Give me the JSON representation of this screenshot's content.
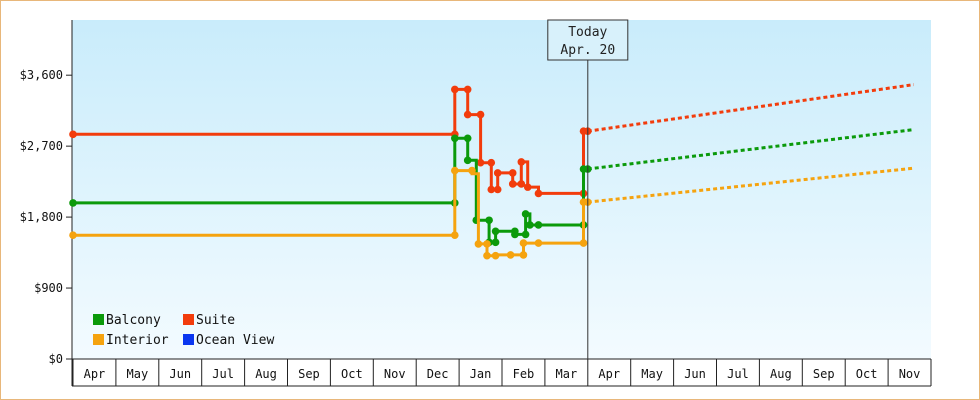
{
  "chart_data": {
    "type": "line",
    "title": "",
    "xlabel": "",
    "ylabel": "",
    "ylim": [
      0,
      4300
    ],
    "yticks": [
      {
        "value": 0,
        "label": "$0"
      },
      {
        "value": 900,
        "label": "$900"
      },
      {
        "value": 1800,
        "label": "$1,800"
      },
      {
        "value": 2700,
        "label": "$2,700"
      },
      {
        "value": 3600,
        "label": "$3,600"
      }
    ],
    "months": [
      "Apr",
      "May",
      "Jun",
      "Jul",
      "Aug",
      "Sep",
      "Oct",
      "Nov",
      "Dec",
      "Jan",
      "Feb",
      "Mar",
      "Apr",
      "May",
      "Jun",
      "Jul",
      "Aug",
      "Sep",
      "Oct",
      "Nov"
    ],
    "x_unit": "months since Apr (first axis month), month index; fractional = day within month",
    "today": {
      "label_line1": "Today",
      "label_line2": "Apr. 20",
      "x": 12.0
    },
    "grid": false,
    "legend_position": "bottom-left",
    "colors": {
      "Balcony": "#0b9a0b",
      "Suite": "#f23c0c",
      "Interior": "#f5a30f",
      "Ocean View": "#0a36f0"
    },
    "series": [
      {
        "name": "Suite",
        "color": "#f23c0c",
        "historical": [
          [
            0.0,
            2850
          ],
          [
            8.9,
            2850
          ],
          [
            8.9,
            3420
          ],
          [
            9.2,
            3420
          ],
          [
            9.2,
            3100
          ],
          [
            9.5,
            3100
          ],
          [
            9.5,
            2490
          ],
          [
            9.75,
            2490
          ],
          [
            9.75,
            2150
          ],
          [
            9.9,
            2150
          ],
          [
            9.9,
            2360
          ],
          [
            10.25,
            2360
          ],
          [
            10.25,
            2220
          ],
          [
            10.45,
            2220
          ],
          [
            10.45,
            2500
          ],
          [
            10.6,
            2500
          ],
          [
            10.6,
            2180
          ],
          [
            10.85,
            2180
          ],
          [
            10.85,
            2100
          ],
          [
            11.9,
            2100
          ],
          [
            11.9,
            2890
          ],
          [
            12.0,
            2890
          ]
        ],
        "projection": [
          [
            12.0,
            2890
          ],
          [
            19.6,
            3480
          ]
        ]
      },
      {
        "name": "Balcony",
        "color": "#0b9a0b",
        "historical": [
          [
            0.0,
            1980
          ],
          [
            8.9,
            1980
          ],
          [
            8.9,
            2800
          ],
          [
            9.2,
            2800
          ],
          [
            9.2,
            2520
          ],
          [
            9.4,
            2520
          ],
          [
            9.4,
            1760
          ],
          [
            9.7,
            1760
          ],
          [
            9.7,
            1480
          ],
          [
            9.85,
            1480
          ],
          [
            9.85,
            1620
          ],
          [
            10.3,
            1620
          ],
          [
            10.3,
            1580
          ],
          [
            10.55,
            1580
          ],
          [
            10.55,
            1840
          ],
          [
            10.65,
            1840
          ],
          [
            10.65,
            1700
          ],
          [
            11.9,
            1700
          ],
          [
            11.9,
            2410
          ],
          [
            12.0,
            2410
          ]
        ],
        "projection": [
          [
            12.0,
            2410
          ],
          [
            19.6,
            2910
          ]
        ]
      },
      {
        "name": "Interior",
        "color": "#f5a30f",
        "historical": [
          [
            0.0,
            1570
          ],
          [
            8.9,
            1570
          ],
          [
            8.9,
            2390
          ],
          [
            9.3,
            2390
          ],
          [
            9.3,
            2350
          ],
          [
            9.45,
            2350
          ],
          [
            9.45,
            1460
          ],
          [
            9.65,
            1460
          ],
          [
            9.65,
            1310
          ],
          [
            9.85,
            1310
          ],
          [
            9.85,
            1320
          ],
          [
            10.5,
            1320
          ],
          [
            10.5,
            1470
          ],
          [
            11.9,
            1470
          ],
          [
            11.9,
            1990
          ],
          [
            12.0,
            1990
          ]
        ],
        "projection": [
          [
            12.0,
            1990
          ],
          [
            19.6,
            2420
          ]
        ]
      },
      {
        "name": "Ocean View",
        "color": "#0a36f0",
        "historical": [],
        "projection": []
      }
    ],
    "markers": {
      "Suite": [
        [
          0.0,
          2850
        ],
        [
          8.9,
          2850
        ],
        [
          8.9,
          3420
        ],
        [
          9.2,
          3420
        ],
        [
          9.2,
          3100
        ],
        [
          9.5,
          3100
        ],
        [
          9.5,
          2490
        ],
        [
          9.75,
          2490
        ],
        [
          9.75,
          2150
        ],
        [
          9.9,
          2150
        ],
        [
          9.9,
          2360
        ],
        [
          10.25,
          2360
        ],
        [
          10.25,
          2220
        ],
        [
          10.45,
          2220
        ],
        [
          10.45,
          2500
        ],
        [
          10.6,
          2180
        ],
        [
          10.85,
          2100
        ],
        [
          11.9,
          2100
        ],
        [
          11.9,
          2890
        ],
        [
          12.0,
          2890
        ]
      ],
      "Balcony": [
        [
          0.0,
          1980
        ],
        [
          8.9,
          1980
        ],
        [
          8.9,
          2800
        ],
        [
          9.2,
          2800
        ],
        [
          9.2,
          2520
        ],
        [
          9.4,
          1760
        ],
        [
          9.7,
          1760
        ],
        [
          9.7,
          1480
        ],
        [
          9.85,
          1480
        ],
        [
          9.85,
          1620
        ],
        [
          10.3,
          1620
        ],
        [
          10.3,
          1580
        ],
        [
          10.55,
          1580
        ],
        [
          10.55,
          1840
        ],
        [
          10.65,
          1700
        ],
        [
          10.85,
          1700
        ],
        [
          11.9,
          1700
        ],
        [
          11.9,
          2410
        ],
        [
          12.0,
          2410
        ]
      ],
      "Interior": [
        [
          0.0,
          1570
        ],
        [
          8.9,
          1570
        ],
        [
          8.9,
          2390
        ],
        [
          9.3,
          2390
        ],
        [
          9.45,
          1460
        ],
        [
          9.65,
          1460
        ],
        [
          9.65,
          1310
        ],
        [
          9.85,
          1310
        ],
        [
          10.2,
          1320
        ],
        [
          10.5,
          1320
        ],
        [
          10.5,
          1470
        ],
        [
          10.85,
          1470
        ],
        [
          11.9,
          1470
        ],
        [
          11.9,
          1990
        ],
        [
          12.0,
          1990
        ]
      ]
    }
  }
}
